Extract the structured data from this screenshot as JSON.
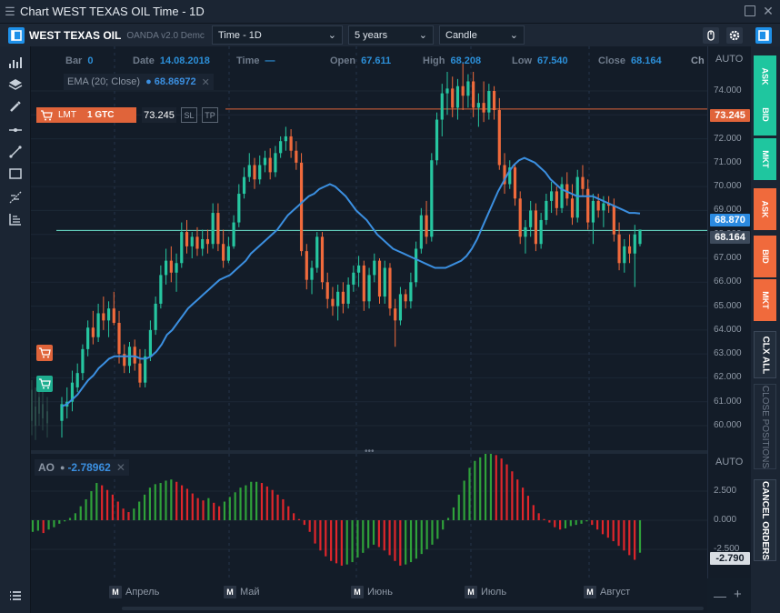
{
  "window": {
    "title": "Chart WEST TEXAS OIL Time - 1D"
  },
  "toolbar": {
    "instrument": "WEST TEXAS OIL",
    "broker": "OANDA v2.0 Demc",
    "timeframe": "Time - 1D",
    "range": "5 years",
    "chart_type": "Candle"
  },
  "info_bar": {
    "bar_label": "Bar",
    "bar_value": "0",
    "date_label": "Date",
    "date_value": "14.08.2018",
    "time_label": "Time",
    "time_value": "—",
    "open_label": "Open",
    "open_value": "67.611",
    "high_label": "High",
    "high_value": "68.208",
    "low_label": "Low",
    "low_value": "67.540",
    "close_label": "Close",
    "close_value": "68.164",
    "ch_label": "Ch"
  },
  "ema": {
    "label": "EMA (20; Close)",
    "value": "68.86972",
    "close": "✕"
  },
  "order": {
    "type": "LMT",
    "qty": "1 GTC",
    "price": "73.245",
    "sl": "SL",
    "tp": "TP"
  },
  "price_axis": {
    "auto": "AUTO",
    "labels": [
      "74.000",
      "73.000",
      "72.000",
      "71.000",
      "70.000",
      "69.000",
      "68.000",
      "67.000",
      "66.000",
      "65.000",
      "64.000",
      "63.000",
      "62.000",
      "61.000",
      "60.000"
    ],
    "order_tag": "73.245",
    "ema_tag": "68.870",
    "last_tag": "68.164"
  },
  "ao_panel": {
    "label": "AO",
    "value": "-2.78962",
    "close": "✕",
    "auto": "AUTO",
    "labels": [
      "2.500",
      "0.000",
      "-2.500"
    ],
    "last_tag": "-2.790"
  },
  "x_axis": {
    "marker": "M",
    "months": [
      "Апрель",
      "Май",
      "Июнь",
      "Июль",
      "Август"
    ]
  },
  "right_panel": {
    "ask": "ASK",
    "bid": "BID",
    "mkt": "MKT",
    "clx_all": "CLX ALL",
    "close_positions": "CLOSE POSITIONS",
    "cancel_orders": "CANCEL ORDERS"
  },
  "colors": {
    "up": "#26c6a0",
    "down": "#f06a3c",
    "ema": "#3b8fe0",
    "ao_up": "#2fa13a",
    "ao_down": "#e0262b",
    "order": "#e0643a",
    "last": "#6ee7d1"
  },
  "icons": [
    "menu-icon",
    "maximize-icon",
    "close-icon",
    "panel-toggle-icon",
    "mouse-icon",
    "gear-icon",
    "cart-icon"
  ],
  "chart_data": [
    {
      "type": "candlestick",
      "y_range": [
        59.0,
        75.0
      ],
      "candles": [
        {
          "o": 60.2,
          "h": 61.2,
          "l": 59.5,
          "c": 60.9
        },
        {
          "o": 60.8,
          "h": 61.6,
          "l": 60.3,
          "c": 61.0
        },
        {
          "o": 61.0,
          "h": 62.3,
          "l": 60.6,
          "c": 61.8
        },
        {
          "o": 61.6,
          "h": 62.6,
          "l": 61.4,
          "c": 62.2
        },
        {
          "o": 62.2,
          "h": 63.4,
          "l": 61.9,
          "c": 63.2
        },
        {
          "o": 63.2,
          "h": 64.4,
          "l": 62.9,
          "c": 64.1
        },
        {
          "o": 64.1,
          "h": 64.8,
          "l": 63.4,
          "c": 63.7
        },
        {
          "o": 63.7,
          "h": 65.1,
          "l": 63.5,
          "c": 64.7
        },
        {
          "o": 64.7,
          "h": 65.4,
          "l": 64.0,
          "c": 64.4
        },
        {
          "o": 64.4,
          "h": 65.2,
          "l": 63.7,
          "c": 64.9
        },
        {
          "o": 64.9,
          "h": 65.6,
          "l": 64.2,
          "c": 64.3
        },
        {
          "o": 64.3,
          "h": 64.8,
          "l": 62.6,
          "c": 63.0
        },
        {
          "o": 63.0,
          "h": 63.4,
          "l": 62.2,
          "c": 62.5
        },
        {
          "o": 62.5,
          "h": 63.5,
          "l": 62.2,
          "c": 63.3
        },
        {
          "o": 63.3,
          "h": 63.6,
          "l": 62.3,
          "c": 62.6
        },
        {
          "o": 62.6,
          "h": 63.2,
          "l": 61.6,
          "c": 61.8
        },
        {
          "o": 61.8,
          "h": 63.2,
          "l": 61.6,
          "c": 62.9
        },
        {
          "o": 62.9,
          "h": 64.4,
          "l": 62.7,
          "c": 64.0
        },
        {
          "o": 64.0,
          "h": 65.4,
          "l": 63.8,
          "c": 65.1
        },
        {
          "o": 65.1,
          "h": 66.7,
          "l": 64.9,
          "c": 66.3
        },
        {
          "o": 66.3,
          "h": 67.4,
          "l": 65.9,
          "c": 66.9
        },
        {
          "o": 66.9,
          "h": 67.5,
          "l": 66.0,
          "c": 66.4
        },
        {
          "o": 66.4,
          "h": 67.2,
          "l": 65.6,
          "c": 66.8
        },
        {
          "o": 66.8,
          "h": 68.5,
          "l": 66.6,
          "c": 68.1
        },
        {
          "o": 68.1,
          "h": 68.6,
          "l": 67.2,
          "c": 67.5
        },
        {
          "o": 67.5,
          "h": 68.1,
          "l": 67.0,
          "c": 67.9
        },
        {
          "o": 67.9,
          "h": 68.3,
          "l": 67.1,
          "c": 67.4
        },
        {
          "o": 67.4,
          "h": 68.2,
          "l": 67.1,
          "c": 67.8
        },
        {
          "o": 67.8,
          "h": 68.2,
          "l": 67.2,
          "c": 67.6
        },
        {
          "o": 67.6,
          "h": 69.3,
          "l": 67.4,
          "c": 68.9
        },
        {
          "o": 68.9,
          "h": 69.3,
          "l": 67.3,
          "c": 67.6
        },
        {
          "o": 67.6,
          "h": 68.2,
          "l": 66.6,
          "c": 66.9
        },
        {
          "o": 66.9,
          "h": 67.9,
          "l": 66.8,
          "c": 67.5
        },
        {
          "o": 67.5,
          "h": 68.8,
          "l": 67.4,
          "c": 68.5
        },
        {
          "o": 68.5,
          "h": 70.1,
          "l": 68.3,
          "c": 69.7
        },
        {
          "o": 69.7,
          "h": 70.8,
          "l": 69.5,
          "c": 70.4
        },
        {
          "o": 70.4,
          "h": 71.4,
          "l": 70.2,
          "c": 70.9
        },
        {
          "o": 70.9,
          "h": 71.2,
          "l": 69.9,
          "c": 70.3
        },
        {
          "o": 70.3,
          "h": 71.3,
          "l": 70.1,
          "c": 70.9
        },
        {
          "o": 70.9,
          "h": 71.5,
          "l": 70.6,
          "c": 71.2
        },
        {
          "o": 71.2,
          "h": 71.6,
          "l": 70.3,
          "c": 70.6
        },
        {
          "o": 70.6,
          "h": 71.7,
          "l": 70.4,
          "c": 71.4
        },
        {
          "o": 71.4,
          "h": 72.1,
          "l": 71.2,
          "c": 71.9
        },
        {
          "o": 71.9,
          "h": 72.5,
          "l": 71.5,
          "c": 72.1
        },
        {
          "o": 72.1,
          "h": 72.4,
          "l": 71.2,
          "c": 71.5
        },
        {
          "o": 71.5,
          "h": 71.9,
          "l": 70.7,
          "c": 71.0
        },
        {
          "o": 71.0,
          "h": 71.4,
          "l": 67.1,
          "c": 67.3
        },
        {
          "o": 67.3,
          "h": 67.6,
          "l": 65.7,
          "c": 66.1
        },
        {
          "o": 66.1,
          "h": 66.9,
          "l": 65.5,
          "c": 66.6
        },
        {
          "o": 66.6,
          "h": 68.1,
          "l": 66.4,
          "c": 67.9
        },
        {
          "o": 67.9,
          "h": 68.1,
          "l": 65.7,
          "c": 66.0
        },
        {
          "o": 66.0,
          "h": 66.4,
          "l": 64.9,
          "c": 65.3
        },
        {
          "o": 65.3,
          "h": 65.8,
          "l": 64.6,
          "c": 65.0
        },
        {
          "o": 65.0,
          "h": 65.9,
          "l": 64.4,
          "c": 65.6
        },
        {
          "o": 65.6,
          "h": 66.0,
          "l": 64.7,
          "c": 65.1
        },
        {
          "o": 65.1,
          "h": 66.2,
          "l": 64.9,
          "c": 65.9
        },
        {
          "o": 65.9,
          "h": 66.7,
          "l": 65.6,
          "c": 66.4
        },
        {
          "o": 66.4,
          "h": 67.1,
          "l": 65.8,
          "c": 66.7
        },
        {
          "o": 66.7,
          "h": 66.9,
          "l": 64.8,
          "c": 65.2
        },
        {
          "o": 65.2,
          "h": 66.6,
          "l": 64.9,
          "c": 66.3
        },
        {
          "o": 66.3,
          "h": 67.2,
          "l": 66.0,
          "c": 66.9
        },
        {
          "o": 66.9,
          "h": 67.0,
          "l": 65.1,
          "c": 65.4
        },
        {
          "o": 65.4,
          "h": 66.9,
          "l": 65.1,
          "c": 66.6
        },
        {
          "o": 66.6,
          "h": 66.8,
          "l": 64.6,
          "c": 64.9
        },
        {
          "o": 64.9,
          "h": 65.3,
          "l": 63.3,
          "c": 64.4
        },
        {
          "o": 64.4,
          "h": 65.8,
          "l": 64.2,
          "c": 65.5
        },
        {
          "o": 65.5,
          "h": 65.7,
          "l": 64.9,
          "c": 65.2
        },
        {
          "o": 65.2,
          "h": 66.4,
          "l": 64.9,
          "c": 66.0
        },
        {
          "o": 66.0,
          "h": 67.7,
          "l": 65.8,
          "c": 67.4
        },
        {
          "o": 67.4,
          "h": 69.1,
          "l": 67.2,
          "c": 68.8
        },
        {
          "o": 68.8,
          "h": 69.4,
          "l": 67.6,
          "c": 67.9
        },
        {
          "o": 67.9,
          "h": 71.4,
          "l": 67.7,
          "c": 71.1
        },
        {
          "o": 71.1,
          "h": 73.1,
          "l": 70.9,
          "c": 72.8
        },
        {
          "o": 72.8,
          "h": 74.3,
          "l": 72.1,
          "c": 73.9
        },
        {
          "o": 73.9,
          "h": 74.8,
          "l": 73.0,
          "c": 74.1
        },
        {
          "o": 74.1,
          "h": 74.6,
          "l": 72.9,
          "c": 73.3
        },
        {
          "o": 73.3,
          "h": 74.5,
          "l": 72.8,
          "c": 74.2
        },
        {
          "o": 74.2,
          "h": 75.2,
          "l": 73.2,
          "c": 73.8
        },
        {
          "o": 73.8,
          "h": 74.7,
          "l": 73.3,
          "c": 74.4
        },
        {
          "o": 74.4,
          "h": 74.8,
          "l": 72.9,
          "c": 73.3
        },
        {
          "o": 73.3,
          "h": 73.9,
          "l": 72.5,
          "c": 73.5
        },
        {
          "o": 73.5,
          "h": 74.4,
          "l": 72.7,
          "c": 73.1
        },
        {
          "o": 73.1,
          "h": 74.3,
          "l": 72.8,
          "c": 74.0
        },
        {
          "o": 74.0,
          "h": 74.2,
          "l": 72.8,
          "c": 73.2
        },
        {
          "o": 73.2,
          "h": 73.7,
          "l": 70.7,
          "c": 70.9
        },
        {
          "o": 70.9,
          "h": 71.4,
          "l": 69.7,
          "c": 70.1
        },
        {
          "o": 70.1,
          "h": 71.1,
          "l": 69.9,
          "c": 70.8
        },
        {
          "o": 70.8,
          "h": 70.9,
          "l": 69.2,
          "c": 69.5
        },
        {
          "o": 69.5,
          "h": 69.8,
          "l": 67.6,
          "c": 67.9
        },
        {
          "o": 67.9,
          "h": 68.6,
          "l": 67.2,
          "c": 68.3
        },
        {
          "o": 68.3,
          "h": 69.4,
          "l": 67.9,
          "c": 69.0
        },
        {
          "o": 69.0,
          "h": 69.3,
          "l": 67.3,
          "c": 67.6
        },
        {
          "o": 67.6,
          "h": 68.9,
          "l": 67.4,
          "c": 68.6
        },
        {
          "o": 68.6,
          "h": 69.7,
          "l": 68.4,
          "c": 69.4
        },
        {
          "o": 69.4,
          "h": 70.2,
          "l": 68.9,
          "c": 69.8
        },
        {
          "o": 69.8,
          "h": 70.0,
          "l": 68.8,
          "c": 69.1
        },
        {
          "o": 69.1,
          "h": 70.4,
          "l": 68.9,
          "c": 70.1
        },
        {
          "o": 70.1,
          "h": 70.6,
          "l": 69.2,
          "c": 69.5
        },
        {
          "o": 69.5,
          "h": 70.1,
          "l": 68.4,
          "c": 68.7
        },
        {
          "o": 68.7,
          "h": 70.7,
          "l": 68.5,
          "c": 70.4
        },
        {
          "o": 70.4,
          "h": 70.9,
          "l": 69.6,
          "c": 69.9
        },
        {
          "o": 69.9,
          "h": 70.3,
          "l": 68.2,
          "c": 68.5
        },
        {
          "o": 68.5,
          "h": 69.7,
          "l": 67.6,
          "c": 69.4
        },
        {
          "o": 69.4,
          "h": 69.7,
          "l": 68.7,
          "c": 69.0
        },
        {
          "o": 69.0,
          "h": 69.6,
          "l": 68.3,
          "c": 69.3
        },
        {
          "o": 69.3,
          "h": 69.6,
          "l": 68.9,
          "c": 69.2
        },
        {
          "o": 69.2,
          "h": 69.5,
          "l": 67.7,
          "c": 68.0
        },
        {
          "o": 68.0,
          "h": 68.5,
          "l": 66.5,
          "c": 66.8
        },
        {
          "o": 66.8,
          "h": 67.8,
          "l": 66.4,
          "c": 67.5
        },
        {
          "o": 67.5,
          "h": 68.0,
          "l": 66.8,
          "c": 67.2
        },
        {
          "o": 67.2,
          "h": 68.4,
          "l": 65.8,
          "c": 68.0
        },
        {
          "o": 67.6,
          "h": 68.2,
          "l": 67.5,
          "c": 68.2
        }
      ],
      "ema": [
        60.8,
        60.9,
        61.1,
        61.3,
        61.6,
        61.9,
        62.1,
        62.4,
        62.6,
        62.8,
        62.9,
        62.9,
        62.9,
        62.9,
        62.9,
        62.8,
        62.8,
        62.9,
        63.1,
        63.4,
        63.8,
        64.0,
        64.3,
        64.6,
        64.9,
        65.1,
        65.3,
        65.5,
        65.7,
        65.9,
        66.1,
        66.2,
        66.3,
        66.5,
        66.7,
        66.9,
        67.2,
        67.4,
        67.6,
        67.8,
        68.0,
        68.2,
        68.5,
        68.8,
        69.0,
        69.2,
        69.4,
        69.6,
        69.7,
        69.9,
        70.0,
        70.1,
        70.0,
        69.8,
        69.6,
        69.3,
        69.0,
        68.8,
        68.6,
        68.3,
        68.0,
        67.8,
        67.6,
        67.4,
        67.3,
        67.2,
        67.1,
        67.0,
        66.9,
        66.8,
        66.7,
        66.6,
        66.6,
        66.6,
        66.7,
        66.8,
        66.9,
        67.1,
        67.4,
        67.8,
        68.3,
        68.8,
        69.3,
        69.8,
        70.2,
        70.6,
        70.9,
        71.1,
        71.2,
        71.1,
        71.0,
        70.8,
        70.6,
        70.3,
        70.1,
        69.9,
        69.8,
        69.7,
        69.6,
        69.6,
        69.6,
        69.6,
        69.5,
        69.4,
        69.3,
        69.2,
        69.1,
        69.0,
        68.9,
        68.9,
        68.87
      ]
    },
    {
      "type": "bar",
      "name": "AO",
      "values": [
        -1.0,
        -0.9,
        -1.1,
        -0.8,
        -0.6,
        -0.3,
        -0.1,
        0.2,
        0.6,
        1.2,
        1.8,
        2.5,
        3.2,
        3.0,
        2.6,
        2.2,
        1.6,
        1.0,
        0.7,
        1.0,
        1.6,
        2.2,
        2.8,
        3.1,
        3.2,
        3.4,
        3.5,
        3.3,
        3.0,
        2.7,
        2.3,
        1.9,
        1.7,
        1.9,
        1.5,
        1.2,
        1.6,
        2.0,
        2.4,
        2.8,
        3.0,
        3.3,
        3.3,
        3.2,
        2.9,
        2.6,
        2.2,
        1.8,
        1.2,
        0.6,
        0.1,
        -0.4,
        -1.0,
        -2.0,
        -2.6,
        -3.1,
        -3.5,
        -3.7,
        -3.9,
        -3.8,
        -3.6,
        -3.2,
        -2.8,
        -2.4,
        -2.1,
        -2.3,
        -2.6,
        -3.0,
        -3.5,
        -3.9,
        -3.8,
        -3.6,
        -3.3,
        -2.9,
        -2.5,
        -2.1,
        -1.6,
        -0.8,
        0.2,
        1.1,
        2.2,
        3.4,
        4.5,
        5.1,
        5.4,
        5.7,
        5.7,
        5.6,
        5.3,
        4.8,
        4.2,
        3.5,
        2.8,
        2.1,
        1.3,
        0.6,
        0.1,
        -0.2,
        -0.6,
        -0.8,
        -0.7,
        -0.5,
        -0.4,
        -0.3,
        -0.1,
        -0.4,
        -0.8,
        -1.2,
        -1.5,
        -1.8,
        -2.2,
        -2.6,
        -3.0,
        -3.4,
        -2.79
      ],
      "y_labels": [
        "2.500",
        "0.000",
        "-2.500"
      ]
    }
  ]
}
